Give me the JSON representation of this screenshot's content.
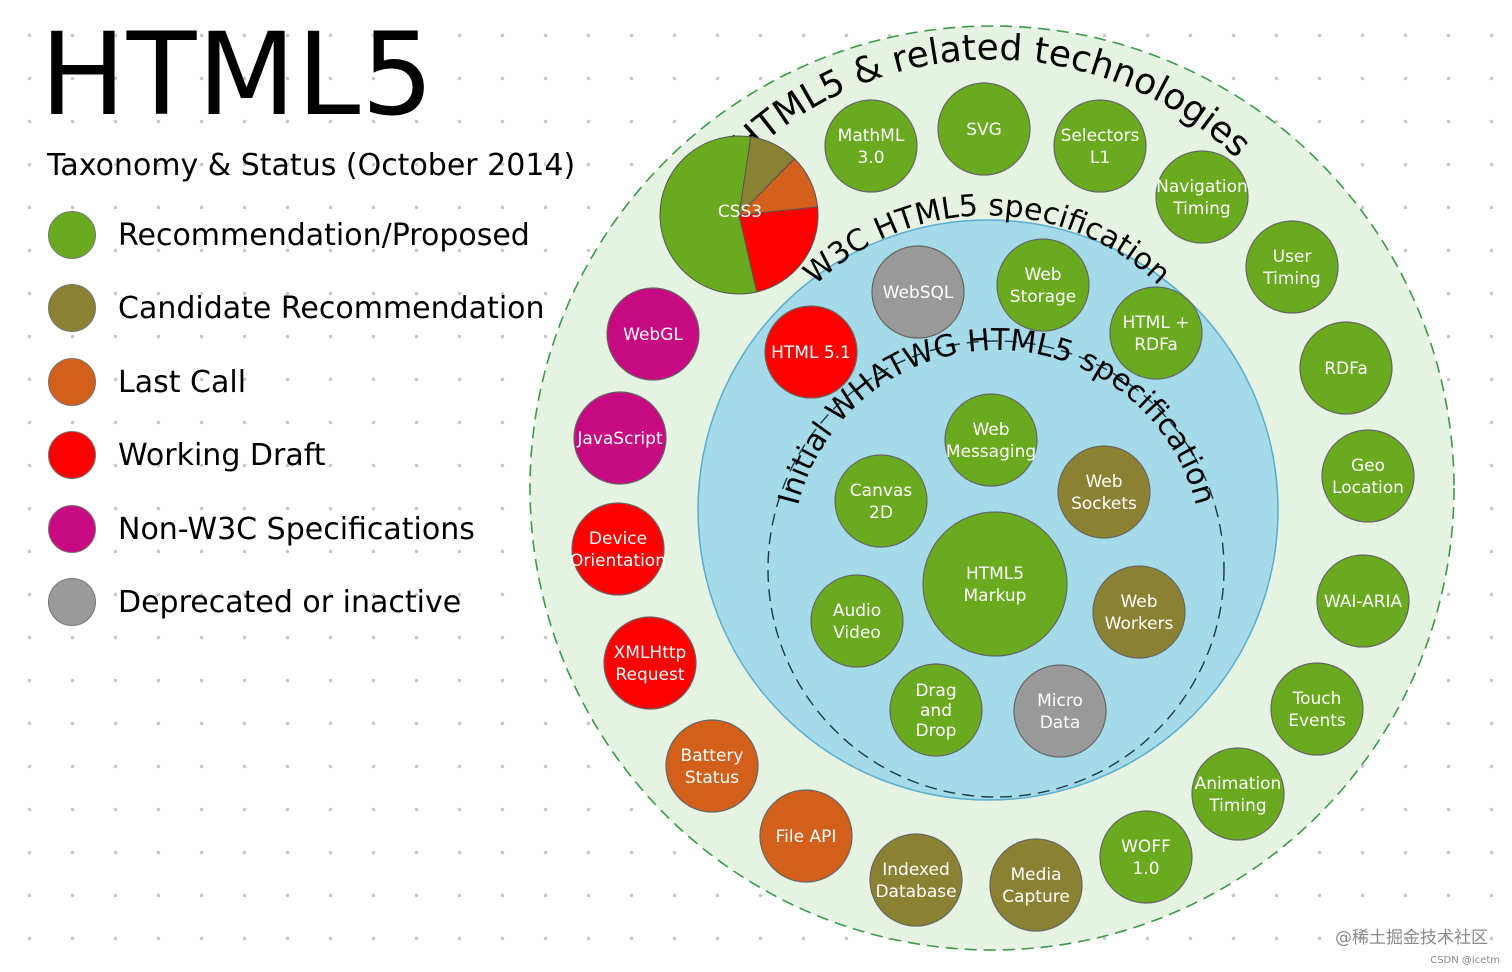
{
  "header": {
    "title": "HTML5",
    "subtitle": "Taxonomy & Status (October 2014)"
  },
  "colors": {
    "recommendation": "#6aaa1e",
    "candidate": "#8a8232",
    "last_call": "#d2601a",
    "working_draft": "#ff0000",
    "non_w3c": "#c80a82",
    "deprecated": "#999999",
    "outer_ring": "#e6f3e3",
    "middle_ring": "#a5dae8",
    "inner_ring": "#a5dae8"
  },
  "legend": [
    {
      "label": "Recommendation/Proposed",
      "status": "recommendation"
    },
    {
      "label": "Candidate Recommendation",
      "status": "candidate"
    },
    {
      "label": "Last Call",
      "status": "last_call"
    },
    {
      "label": "Working Draft",
      "status": "working_draft"
    },
    {
      "label": "Non-W3C Specifications",
      "status": "non_w3c"
    },
    {
      "label": "Deprecated or inactive",
      "status": "deprecated"
    }
  ],
  "rings": {
    "outer": "HTML5 & related technologies",
    "middle": "W3C HTML5 specification",
    "inner": "Initial WHATWG HTML5 specification"
  },
  "css3": {
    "label": "CSS3",
    "slices": [
      {
        "status": "recommendation",
        "fraction": 0.56
      },
      {
        "status": "candidate",
        "fraction": 0.1
      },
      {
        "status": "last_call",
        "fraction": 0.11
      },
      {
        "status": "working_draft",
        "fraction": 0.23
      }
    ]
  },
  "nodes": {
    "outer": [
      {
        "lines": [
          "MathML",
          "3.0"
        ],
        "status": "recommendation"
      },
      {
        "lines": [
          "SVG"
        ],
        "status": "recommendation"
      },
      {
        "lines": [
          "Selectors",
          "L1"
        ],
        "status": "recommendation"
      },
      {
        "lines": [
          "Navigation",
          "Timing"
        ],
        "status": "recommendation"
      },
      {
        "lines": [
          "User",
          "Timing"
        ],
        "status": "recommendation"
      },
      {
        "lines": [
          "RDFa"
        ],
        "status": "recommendation"
      },
      {
        "lines": [
          "Geo",
          "Location"
        ],
        "status": "recommendation"
      },
      {
        "lines": [
          "WAI-ARIA"
        ],
        "status": "recommendation"
      },
      {
        "lines": [
          "Touch",
          "Events"
        ],
        "status": "recommendation"
      },
      {
        "lines": [
          "Animation",
          "Timing"
        ],
        "status": "recommendation"
      },
      {
        "lines": [
          "WOFF",
          "1.0"
        ],
        "status": "recommendation"
      },
      {
        "lines": [
          "Media",
          "Capture"
        ],
        "status": "candidate"
      },
      {
        "lines": [
          "Indexed",
          "Database"
        ],
        "status": "candidate"
      },
      {
        "lines": [
          "File API"
        ],
        "status": "last_call"
      },
      {
        "lines": [
          "Battery",
          "Status"
        ],
        "status": "last_call"
      },
      {
        "lines": [
          "XMLHttp",
          "Request"
        ],
        "status": "working_draft"
      },
      {
        "lines": [
          "Device",
          "Orientation"
        ],
        "status": "working_draft"
      },
      {
        "lines": [
          "JavaScript"
        ],
        "status": "non_w3c"
      },
      {
        "lines": [
          "WebGL"
        ],
        "status": "non_w3c"
      }
    ],
    "middle": [
      {
        "lines": [
          "HTML 5.1"
        ],
        "status": "working_draft"
      },
      {
        "lines": [
          "WebSQL"
        ],
        "status": "deprecated"
      },
      {
        "lines": [
          "Web",
          "Storage"
        ],
        "status": "recommendation"
      },
      {
        "lines": [
          "HTML +",
          "RDFa"
        ],
        "status": "recommendation"
      }
    ],
    "inner": [
      {
        "lines": [
          "Web",
          "Messaging"
        ],
        "status": "recommendation"
      },
      {
        "lines": [
          "Canvas",
          "2D"
        ],
        "status": "recommendation"
      },
      {
        "lines": [
          "Web",
          "Sockets"
        ],
        "status": "candidate"
      },
      {
        "lines": [
          "HTML5",
          "Markup"
        ],
        "status": "recommendation"
      },
      {
        "lines": [
          "Audio",
          "Video"
        ],
        "status": "recommendation"
      },
      {
        "lines": [
          "Web",
          "Workers"
        ],
        "status": "candidate"
      },
      {
        "lines": [
          "Drag",
          "and",
          "Drop"
        ],
        "status": "recommendation"
      },
      {
        "lines": [
          "Micro",
          "Data"
        ],
        "status": "deprecated"
      }
    ]
  },
  "footer": {
    "source": "@稀土掘金技术社区",
    "credit": "CSDN @icetm"
  }
}
